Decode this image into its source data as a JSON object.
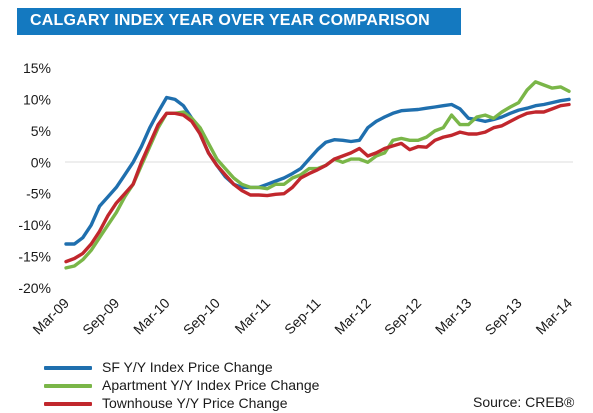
{
  "title": "CALGARY INDEX YEAR OVER YEAR COMPARISON",
  "source": "Source: CREB®",
  "chart_data": {
    "type": "line",
    "title": "CALGARY INDEX YEAR OVER YEAR COMPARISON",
    "x_tick_labels": [
      "Mar-09",
      "Sep-09",
      "Mar-10",
      "Sep-10",
      "Mar-11",
      "Sep-11",
      "Mar-12",
      "Sep-12",
      "Mar-13",
      "Sep-13",
      "Mar-14"
    ],
    "x_range": [
      "Mar-09",
      "Mar-14"
    ],
    "y_tick_labels": [
      "15%",
      "10%",
      "5%",
      "0%",
      "-5%",
      "-10%",
      "-15%",
      "-20%"
    ],
    "ylim": [
      -20,
      15
    ],
    "y_unit": "%",
    "grid": false,
    "legend_position": "bottom-left",
    "series": [
      {
        "name": "SF Y/Y Index Price Change",
        "color": "#1f6fae",
        "x": [
          "Mar-09",
          "Apr-09",
          "May-09",
          "Jun-09",
          "Jul-09",
          "Aug-09",
          "Sep-09",
          "Oct-09",
          "Nov-09",
          "Dec-09",
          "Jan-10",
          "Feb-10",
          "Mar-10",
          "Apr-10",
          "May-10",
          "Jun-10",
          "Jul-10",
          "Aug-10",
          "Sep-10",
          "Oct-10",
          "Nov-10",
          "Dec-10",
          "Jan-11",
          "Feb-11",
          "Mar-11",
          "Apr-11",
          "May-11",
          "Jun-11",
          "Jul-11",
          "Aug-11",
          "Sep-11",
          "Oct-11",
          "Nov-11",
          "Dec-11",
          "Jan-12",
          "Feb-12",
          "Mar-12",
          "Apr-12",
          "May-12",
          "Jun-12",
          "Jul-12",
          "Aug-12",
          "Sep-12",
          "Oct-12",
          "Nov-12",
          "Dec-12",
          "Jan-13",
          "Feb-13",
          "Mar-13",
          "Apr-13",
          "May-13",
          "Jun-13",
          "Jul-13",
          "Aug-13",
          "Sep-13",
          "Oct-13",
          "Nov-13",
          "Dec-13",
          "Jan-14",
          "Feb-14",
          "Mar-14"
        ],
        "values": [
          -13,
          -13,
          -12,
          -10,
          -7,
          -5.5,
          -4,
          -2,
          0,
          2.5,
          5.5,
          8,
          10.3,
          10,
          9,
          7,
          4.5,
          1.5,
          -0.5,
          -2.3,
          -3.5,
          -4,
          -4,
          -4,
          -3.5,
          -3,
          -2.5,
          -1.8,
          -1,
          0.5,
          2,
          3.2,
          3.6,
          3.5,
          3.3,
          3.5,
          5.5,
          6.5,
          7.2,
          7.8,
          8.2,
          8.3,
          8.4,
          8.6,
          8.8,
          9,
          9.2,
          8.5,
          7,
          6.8,
          6.5,
          6.8,
          7.2,
          7.8,
          8.3,
          8.6,
          9,
          9.2,
          9.5,
          9.8,
          10
        ]
      },
      {
        "name": "Apartment Y/Y Index Price Change",
        "color": "#7ab648",
        "x": [
          "Mar-09",
          "Apr-09",
          "May-09",
          "Jun-09",
          "Jul-09",
          "Aug-09",
          "Sep-09",
          "Oct-09",
          "Nov-09",
          "Dec-09",
          "Jan-10",
          "Feb-10",
          "Mar-10",
          "Apr-10",
          "May-10",
          "Jun-10",
          "Jul-10",
          "Aug-10",
          "Sep-10",
          "Oct-10",
          "Nov-10",
          "Dec-10",
          "Jan-11",
          "Feb-11",
          "Mar-11",
          "Apr-11",
          "May-11",
          "Jun-11",
          "Jul-11",
          "Aug-11",
          "Sep-11",
          "Oct-11",
          "Nov-11",
          "Dec-11",
          "Jan-12",
          "Feb-12",
          "Mar-12",
          "Apr-12",
          "May-12",
          "Jun-12",
          "Jul-12",
          "Aug-12",
          "Sep-12",
          "Oct-12",
          "Nov-12",
          "Dec-12",
          "Jan-13",
          "Feb-13",
          "Mar-13",
          "Apr-13",
          "May-13",
          "Jun-13",
          "Jul-13",
          "Aug-13",
          "Sep-13",
          "Oct-13",
          "Nov-13",
          "Dec-13",
          "Jan-14",
          "Feb-14",
          "Mar-14"
        ],
        "values": [
          -16.8,
          -16.5,
          -15.5,
          -14,
          -12,
          -10,
          -8,
          -5.5,
          -3.5,
          -0.5,
          2.5,
          5.5,
          7.8,
          7.8,
          8,
          7,
          5.5,
          3,
          0.5,
          -1,
          -2.5,
          -3.5,
          -4,
          -4,
          -4.2,
          -3.5,
          -3.5,
          -2.5,
          -2,
          -1,
          -1,
          -0.5,
          0.5,
          0,
          0.5,
          0.5,
          0,
          1,
          1.5,
          3.5,
          3.8,
          3.5,
          3.5,
          4,
          5,
          5.5,
          7.5,
          6,
          6,
          7.2,
          7.5,
          7,
          8,
          8.8,
          9.5,
          11.5,
          12.8,
          12.3,
          11.8,
          12,
          11.3
        ]
      },
      {
        "name": "Townhouse Y/Y Price Change",
        "color": "#c1272d",
        "x": [
          "Mar-09",
          "Apr-09",
          "May-09",
          "Jun-09",
          "Jul-09",
          "Aug-09",
          "Sep-09",
          "Oct-09",
          "Nov-09",
          "Dec-09",
          "Jan-10",
          "Feb-10",
          "Mar-10",
          "Apr-10",
          "May-10",
          "Jun-10",
          "Jul-10",
          "Aug-10",
          "Sep-10",
          "Oct-10",
          "Nov-10",
          "Dec-10",
          "Jan-11",
          "Feb-11",
          "Mar-11",
          "Apr-11",
          "May-11",
          "Jun-11",
          "Jul-11",
          "Aug-11",
          "Sep-11",
          "Oct-11",
          "Nov-11",
          "Dec-11",
          "Jan-12",
          "Feb-12",
          "Mar-12",
          "Apr-12",
          "May-12",
          "Jun-12",
          "Jul-12",
          "Aug-12",
          "Sep-12",
          "Oct-12",
          "Nov-12",
          "Dec-12",
          "Jan-13",
          "Feb-13",
          "Mar-13",
          "Apr-13",
          "May-13",
          "Jun-13",
          "Jul-13",
          "Aug-13",
          "Sep-13",
          "Oct-13",
          "Nov-13",
          "Dec-13",
          "Jan-14",
          "Feb-14",
          "Mar-14"
        ],
        "values": [
          -15.8,
          -15.3,
          -14.5,
          -13,
          -11,
          -8.5,
          -6.5,
          -5,
          -3.5,
          0,
          3,
          6,
          7.8,
          7.8,
          7.5,
          6.5,
          4.5,
          1.5,
          -0.5,
          -2,
          -3.5,
          -4.5,
          -5.2,
          -5.2,
          -5.3,
          -5.1,
          -5,
          -4,
          -2.5,
          -1.8,
          -1.2,
          -0.5,
          0.5,
          1,
          1.5,
          2.2,
          1,
          1.5,
          2.2,
          2.6,
          3,
          2,
          2.5,
          2.4,
          3.5,
          4,
          4.3,
          4.8,
          4.5,
          4.5,
          4.8,
          5.5,
          5.8,
          6.5,
          7.2,
          7.8,
          8,
          8,
          8.5,
          9,
          9.2
        ]
      }
    ]
  }
}
